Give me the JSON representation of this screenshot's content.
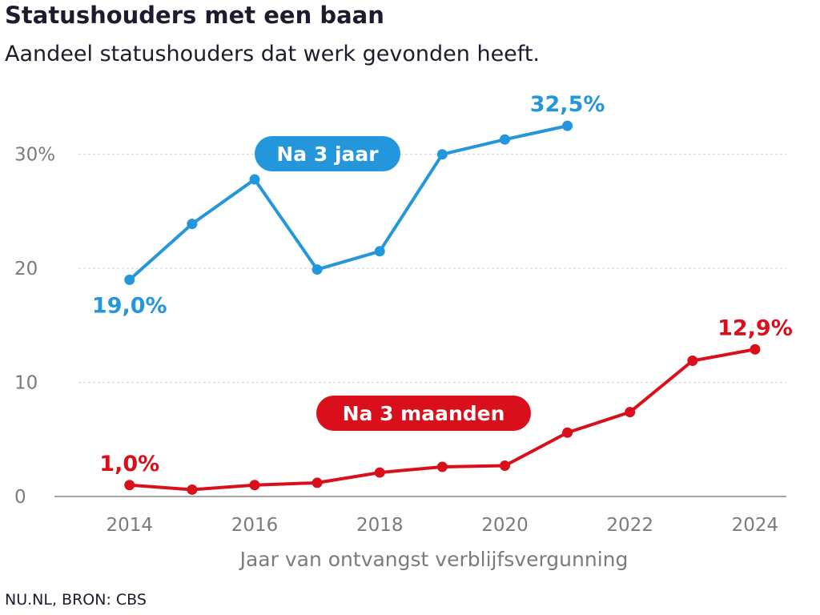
{
  "title": "Statushouders met een baan",
  "subtitle": "Aandeel statushouders dat werk gevonden heeft.",
  "source": "NU.NL, BRON: CBS",
  "colors": {
    "blue": "#2496dc",
    "red": "#d90f1b",
    "grid": "#d0d0d0",
    "axis": "#888888"
  },
  "chart_data": {
    "type": "line",
    "title": "Statushouders met een baan",
    "subtitle": "Aandeel statushouders dat werk gevonden heeft.",
    "xlabel": "Jaar van ontvangst verblijfsvergunning",
    "ylabel": "",
    "xlim": [
      2012.8,
      2024.5
    ],
    "ylim": [
      0,
      33
    ],
    "x_ticks": [
      2014,
      2016,
      2018,
      2020,
      2022,
      2024
    ],
    "y_ticks": [
      {
        "value": 0,
        "label": "0"
      },
      {
        "value": 10,
        "label": "10"
      },
      {
        "value": 20,
        "label": "20"
      },
      {
        "value": 30,
        "label": "30%"
      }
    ],
    "grid": true,
    "legend": "inline labels",
    "series": [
      {
        "name": "Na 3 jaar",
        "color": "#2496dc",
        "x": [
          2014,
          2015,
          2016,
          2017,
          2018,
          2019,
          2020,
          2021
        ],
        "values": [
          19.0,
          23.9,
          27.8,
          19.9,
          21.5,
          30.0,
          31.3,
          32.5
        ],
        "labels": [
          {
            "x": 2014,
            "y": 19.0,
            "text": "19,0%",
            "pos": "below"
          },
          {
            "x": 2021,
            "y": 32.5,
            "text": "32,5%",
            "pos": "above"
          }
        ]
      },
      {
        "name": "Na 3 maanden",
        "color": "#d90f1b",
        "x": [
          2014,
          2015,
          2016,
          2017,
          2018,
          2019,
          2020,
          2021,
          2022,
          2023,
          2024
        ],
        "values": [
          1.0,
          0.6,
          1.0,
          1.2,
          2.1,
          2.6,
          2.7,
          5.6,
          7.4,
          11.9,
          12.9
        ],
        "labels": [
          {
            "x": 2014,
            "y": 1.0,
            "text": "1,0%",
            "pos": "above"
          },
          {
            "x": 2024,
            "y": 12.9,
            "text": "12,9%",
            "pos": "above"
          }
        ]
      }
    ]
  }
}
